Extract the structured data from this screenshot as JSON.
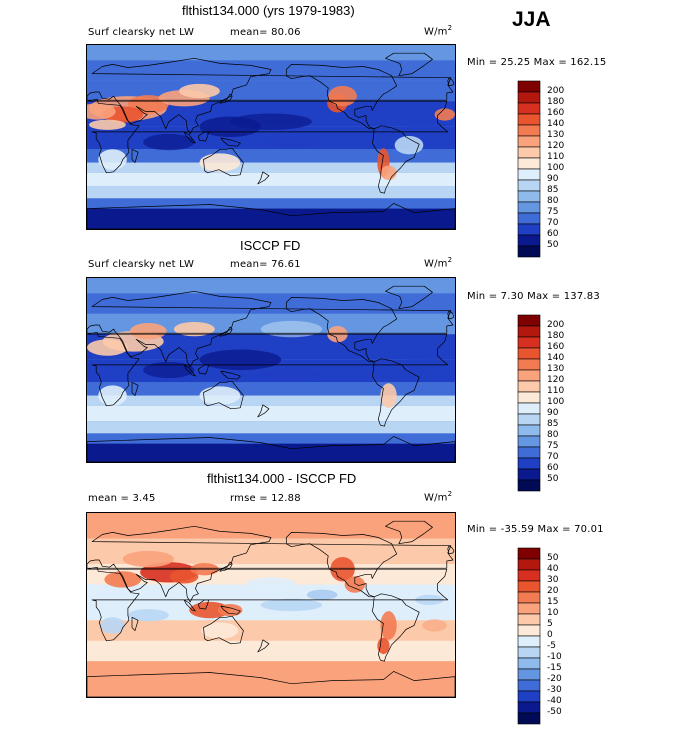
{
  "season": "JJA",
  "panels": [
    {
      "title": "flthist134.000 (yrs 1979-1983)",
      "left_label": "Surf clearsky net LW",
      "stat_text": "mean=  80.06",
      "units": "W/m",
      "units_sup": "2",
      "minmax": "Min =  25.25 Max = 162.15"
    },
    {
      "title": "ISCCP FD",
      "left_label": "Surf clearsky net LW",
      "stat_text": "mean=  76.61",
      "units": "W/m",
      "units_sup": "2",
      "minmax": "Min =   7.30 Max = 137.83"
    },
    {
      "title": "flthist134.000 - ISCCP FD",
      "left_label": "mean =   3.45",
      "stat_text": "rmse =  12.88",
      "units": "W/m",
      "units_sup": "2",
      "minmax": "Min = -35.59 Max =  70.01"
    }
  ],
  "chart_data": [
    {
      "type": "heatmap",
      "title": "flthist134.000 (yrs 1979-1983)",
      "field": "Surf clearsky net LW",
      "mean": 80.06,
      "min": 25.25,
      "max": 162.15,
      "colorbar_levels": [
        "200",
        "180",
        "160",
        "140",
        "130",
        "120",
        "110",
        "100",
        "90",
        "85",
        "80",
        "75",
        "70",
        "60",
        "50"
      ],
      "colorbar_colors": [
        "#7f0000",
        "#b2180e",
        "#d73020",
        "#e9552f",
        "#f37b52",
        "#f9a27c",
        "#fccaaa",
        "#fde9d8",
        "#dfeefb",
        "#b8d6f4",
        "#8fbbec",
        "#6596e2",
        "#3f6cd6",
        "#1f3fc4",
        "#0a1a8e",
        "#000a55"
      ]
    },
    {
      "type": "heatmap",
      "title": "ISCCP FD",
      "field": "Surf clearsky net LW",
      "mean": 76.61,
      "min": 7.3,
      "max": 137.83,
      "colorbar_levels": [
        "200",
        "180",
        "160",
        "140",
        "130",
        "120",
        "110",
        "100",
        "90",
        "85",
        "80",
        "75",
        "70",
        "60",
        "50"
      ],
      "colorbar_colors": [
        "#7f0000",
        "#b2180e",
        "#d73020",
        "#e9552f",
        "#f37b52",
        "#f9a27c",
        "#fccaaa",
        "#fde9d8",
        "#dfeefb",
        "#b8d6f4",
        "#8fbbec",
        "#6596e2",
        "#3f6cd6",
        "#1f3fc4",
        "#0a1a8e",
        "#000a55"
      ]
    },
    {
      "type": "heatmap",
      "title": "flthist134.000 - ISCCP FD",
      "mean": 3.45,
      "rmse": 12.88,
      "min": -35.59,
      "max": 70.01,
      "colorbar_levels": [
        "50",
        "40",
        "30",
        "20",
        "15",
        "10",
        "5",
        "0",
        "-5",
        "-10",
        "-15",
        "-20",
        "-30",
        "-40",
        "-50"
      ],
      "colorbar_colors": [
        "#7f0000",
        "#b2180e",
        "#d73020",
        "#e9552f",
        "#f37b52",
        "#f9a27c",
        "#fccaaa",
        "#fde9d8",
        "#dfeefb",
        "#b8d6f4",
        "#8fbbec",
        "#6596e2",
        "#3f6cd6",
        "#1f3fc4",
        "#0a1a8e",
        "#000a55"
      ]
    }
  ]
}
